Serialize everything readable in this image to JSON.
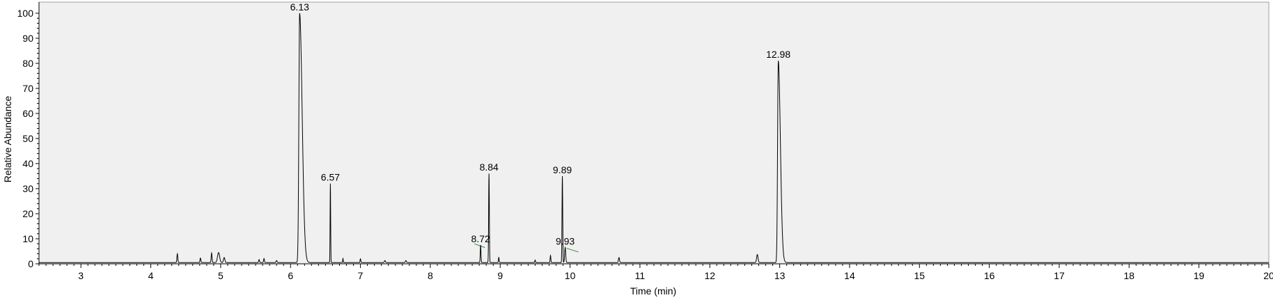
{
  "chart_data": {
    "type": "line",
    "title": "",
    "xlabel": "Time (min)",
    "ylabel": "Relative Abundance",
    "xlim": [
      2.4,
      20.0
    ],
    "ylim": [
      0,
      100
    ],
    "x_ticks": [
      3,
      4,
      5,
      6,
      7,
      8,
      9,
      10,
      11,
      12,
      13,
      14,
      15,
      16,
      17,
      18,
      19,
      20
    ],
    "y_ticks": [
      0,
      10,
      20,
      30,
      40,
      50,
      60,
      70,
      80,
      90,
      100
    ],
    "grid": false,
    "legend": "none",
    "background_color": "#f0f0f0",
    "trace_color": "#000000",
    "baseline_color": "#2e8b2e",
    "series": [
      {
        "baseline": 0.5,
        "peaks": [
          {
            "rt": 4.38,
            "height": 3.5,
            "width": 0.012
          },
          {
            "rt": 4.71,
            "height": 1.8,
            "width": 0.012
          },
          {
            "rt": 4.87,
            "height": 3.8,
            "width": 0.012
          },
          {
            "rt": 4.97,
            "height": 4.0,
            "width": 0.03
          },
          {
            "rt": 5.05,
            "height": 2.0,
            "width": 0.02
          },
          {
            "rt": 5.55,
            "height": 1.2,
            "width": 0.012
          },
          {
            "rt": 5.62,
            "height": 1.6,
            "width": 0.012
          },
          {
            "rt": 5.8,
            "height": 0.8,
            "width": 0.015
          },
          {
            "rt": 6.13,
            "height": 99.5,
            "width": 0.022,
            "tail": 0.05
          },
          {
            "rt": 6.57,
            "height": 31.5,
            "width": 0.008
          },
          {
            "rt": 6.75,
            "height": 1.6,
            "width": 0.008
          },
          {
            "rt": 7.0,
            "height": 1.5,
            "width": 0.01
          },
          {
            "rt": 7.35,
            "height": 0.8,
            "width": 0.015
          },
          {
            "rt": 7.65,
            "height": 0.8,
            "width": 0.015
          },
          {
            "rt": 8.72,
            "height": 7.0,
            "width": 0.01
          },
          {
            "rt": 8.84,
            "height": 35.5,
            "width": 0.01
          },
          {
            "rt": 8.98,
            "height": 2.0,
            "width": 0.01
          },
          {
            "rt": 9.5,
            "height": 1.0,
            "width": 0.01
          },
          {
            "rt": 9.72,
            "height": 2.8,
            "width": 0.01
          },
          {
            "rt": 9.89,
            "height": 34.5,
            "width": 0.01
          },
          {
            "rt": 9.93,
            "height": 6.0,
            "width": 0.015
          },
          {
            "rt": 10.7,
            "height": 2.0,
            "width": 0.015
          },
          {
            "rt": 12.68,
            "height": 3.2,
            "width": 0.02
          },
          {
            "rt": 12.98,
            "height": 80.5,
            "width": 0.02,
            "tail": 0.04
          }
        ]
      }
    ],
    "annotations": [
      {
        "text": "6.13",
        "x": 6.13,
        "y": 99.5
      },
      {
        "text": "6.57",
        "x": 6.57,
        "y": 31.5
      },
      {
        "text": "8.72",
        "x": 8.72,
        "y": 7.0
      },
      {
        "text": "8.84",
        "x": 8.84,
        "y": 35.5
      },
      {
        "text": "9.89",
        "x": 9.89,
        "y": 34.5
      },
      {
        "text": "9.93",
        "x": 9.93,
        "y": 6.0
      },
      {
        "text": "12.98",
        "x": 12.98,
        "y": 80.5
      }
    ]
  }
}
